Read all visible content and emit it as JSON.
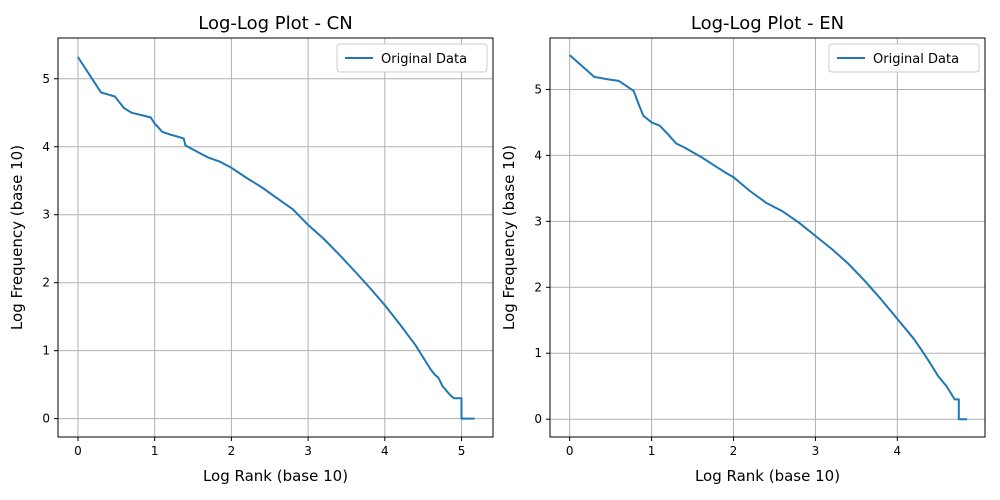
{
  "chart_data": [
    {
      "type": "line",
      "title": "Log-Log Plot - CN",
      "xlabel": "Log Rank (base 10)",
      "ylabel": "Log Frequency (base 10)",
      "xlim": [
        -0.26,
        5.41
      ],
      "ylim": [
        -0.27,
        5.6
      ],
      "xticks": [
        0,
        1,
        2,
        3,
        4,
        5
      ],
      "yticks": [
        0,
        1,
        2,
        3,
        4,
        5
      ],
      "grid": true,
      "legend": "top-right",
      "color": "#1f77b4",
      "series": [
        {
          "name": "Original Data",
          "x": [
            0,
            0.3,
            0.48,
            0.6,
            0.7,
            0.85,
            0.95,
            1.0,
            1.1,
            1.2,
            1.3,
            1.38,
            1.4,
            1.5,
            1.6,
            1.7,
            1.85,
            2.0,
            2.2,
            2.4,
            2.6,
            2.8,
            3.0,
            3.2,
            3.4,
            3.6,
            3.8,
            4.0,
            4.2,
            4.4,
            4.5,
            4.55,
            4.6,
            4.65,
            4.7,
            4.75,
            4.85,
            4.9,
            5.0,
            5.0,
            5.17
          ],
          "y": [
            5.32,
            4.8,
            4.74,
            4.57,
            4.5,
            4.46,
            4.43,
            4.34,
            4.22,
            4.18,
            4.15,
            4.12,
            4.02,
            3.96,
            3.9,
            3.84,
            3.78,
            3.69,
            3.54,
            3.4,
            3.24,
            3.08,
            2.85,
            2.65,
            2.42,
            2.18,
            1.93,
            1.67,
            1.38,
            1.08,
            0.9,
            0.81,
            0.72,
            0.65,
            0.6,
            0.48,
            0.35,
            0.3,
            0.3,
            0.0,
            0.0
          ]
        }
      ]
    },
    {
      "type": "line",
      "title": "Log-Log Plot - EN",
      "xlabel": "Log Rank (base 10)",
      "ylabel": "Log Frequency (base 10)",
      "xlim": [
        -0.24,
        5.07
      ],
      "ylim": [
        -0.27,
        5.78
      ],
      "xticks": [
        0,
        1,
        2,
        3,
        4
      ],
      "yticks": [
        0,
        1,
        2,
        3,
        4,
        5
      ],
      "grid": true,
      "legend": "top-right",
      "color": "#1f77b4",
      "series": [
        {
          "name": "Original Data",
          "x": [
            0,
            0.3,
            0.48,
            0.6,
            0.78,
            0.85,
            0.9,
            1.0,
            1.1,
            1.2,
            1.3,
            1.4,
            1.5,
            1.6,
            1.7,
            1.8,
            1.9,
            2.0,
            2.2,
            2.4,
            2.6,
            2.8,
            3.0,
            3.2,
            3.4,
            3.6,
            3.8,
            4.0,
            4.2,
            4.3,
            4.4,
            4.5,
            4.6,
            4.7,
            4.75,
            4.75,
            4.85
          ],
          "y": [
            5.52,
            5.19,
            5.15,
            5.13,
            4.98,
            4.75,
            4.6,
            4.5,
            4.45,
            4.32,
            4.18,
            4.12,
            4.05,
            3.98,
            3.9,
            3.82,
            3.74,
            3.67,
            3.46,
            3.28,
            3.15,
            2.98,
            2.78,
            2.58,
            2.36,
            2.1,
            1.82,
            1.52,
            1.22,
            1.04,
            0.85,
            0.65,
            0.5,
            0.3,
            0.3,
            0.0,
            0.0
          ]
        }
      ]
    }
  ]
}
